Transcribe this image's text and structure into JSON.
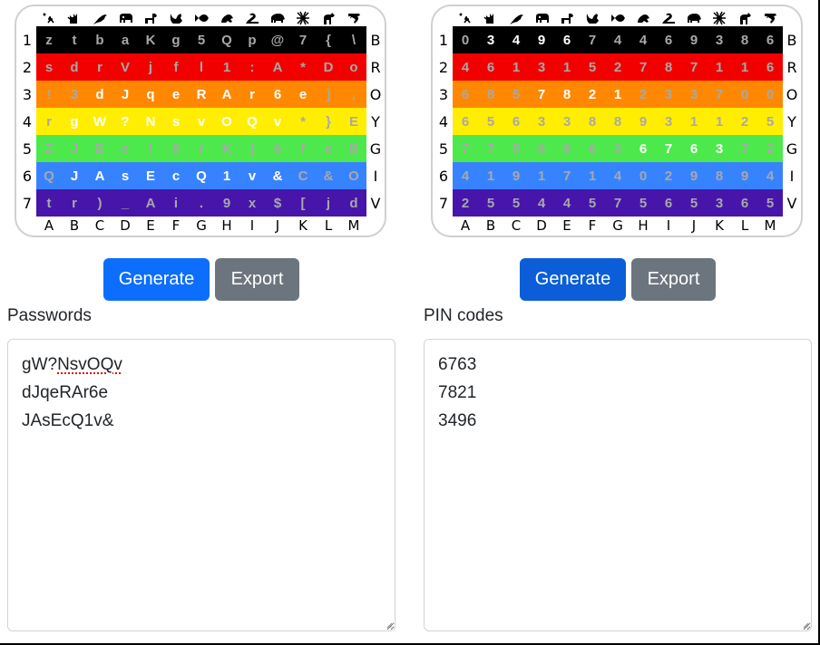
{
  "colors": {
    "rows": [
      "#000000",
      "#f20000",
      "#ff8800",
      "#ffee00",
      "#4de94c",
      "#3783ff",
      "#4815aa"
    ],
    "primary_button": "#0d6efd",
    "primary_button_active": "#0b5ed7",
    "secondary_button": "#6c757d",
    "dim_text": "#a8a8a8",
    "highlight_text": "#ffffff"
  },
  "grid_axes": {
    "icons": [
      "ant-icon",
      "cat-icon",
      "bird-icon",
      "elephant-icon",
      "dog-icon",
      "squirrel-icon",
      "fish-icon",
      "frog-icon",
      "snake-icon",
      "hippo-icon",
      "spider-icon",
      "horse-icon",
      "shrimp-icon"
    ],
    "row_numbers": [
      "1",
      "2",
      "3",
      "4",
      "5",
      "6",
      "7"
    ],
    "row_colors": [
      "B",
      "R",
      "O",
      "Y",
      "G",
      "I",
      "V"
    ],
    "col_letters": [
      "A",
      "B",
      "C",
      "D",
      "E",
      "F",
      "G",
      "H",
      "I",
      "J",
      "K",
      "L",
      "M"
    ]
  },
  "passwords": {
    "grid": [
      [
        "z",
        "t",
        "b",
        "a",
        "K",
        "g",
        "5",
        "Q",
        "p",
        "@",
        "7",
        "{",
        "\\"
      ],
      [
        "s",
        "d",
        "r",
        "V",
        "j",
        "f",
        "l",
        "1",
        ":",
        "A",
        "*",
        "D",
        "o"
      ],
      [
        "!",
        "3",
        "d",
        "J",
        "q",
        "e",
        "R",
        "A",
        "r",
        "6",
        "e",
        "]",
        ","
      ],
      [
        "r",
        "g",
        "W",
        "?",
        "N",
        "s",
        "v",
        "O",
        "Q",
        "v",
        "*",
        "}",
        "E"
      ],
      [
        "Z",
        "J",
        "E",
        "e",
        "!",
        "8",
        "r",
        "K",
        "{",
        "6",
        "f",
        "e",
        "B"
      ],
      [
        "Q",
        "J",
        "A",
        "s",
        "E",
        "c",
        "Q",
        "1",
        "v",
        "&",
        "C",
        "&",
        "O"
      ],
      [
        "t",
        "r",
        ")",
        "_",
        "A",
        "i",
        ".",
        "9",
        "x",
        "$",
        "[",
        "j",
        "d"
      ]
    ],
    "highlights": [
      [
        0,
        0,
        0,
        0,
        0,
        0,
        0,
        0,
        0,
        0,
        0,
        0,
        0
      ],
      [
        0,
        0,
        0,
        0,
        0,
        0,
        0,
        0,
        0,
        0,
        0,
        0,
        0
      ],
      [
        0,
        0,
        1,
        1,
        1,
        1,
        1,
        1,
        1,
        1,
        1,
        0,
        0
      ],
      [
        0,
        1,
        1,
        1,
        1,
        1,
        1,
        1,
        1,
        1,
        0,
        0,
        0
      ],
      [
        0,
        0,
        0,
        0,
        0,
        0,
        0,
        0,
        0,
        0,
        0,
        0,
        0
      ],
      [
        0,
        1,
        1,
        1,
        1,
        1,
        1,
        1,
        1,
        1,
        0,
        0,
        0
      ],
      [
        0,
        0,
        0,
        0,
        0,
        0,
        0,
        0,
        0,
        0,
        0,
        0,
        0
      ]
    ],
    "generate_label": "Generate",
    "export_label": "Export",
    "field_label": "Passwords",
    "values": [
      "gW?NsvOQv",
      "dJqeRAr6e",
      "JAsEcQ1v&"
    ],
    "first_value_prefix": "gW?",
    "first_value_misspelled": "NsvOQv"
  },
  "pins": {
    "grid": [
      [
        "0",
        "3",
        "4",
        "9",
        "6",
        "7",
        "4",
        "4",
        "6",
        "9",
        "3",
        "8",
        "6"
      ],
      [
        "4",
        "6",
        "1",
        "3",
        "1",
        "5",
        "2",
        "7",
        "8",
        "7",
        "1",
        "1",
        "6"
      ],
      [
        "6",
        "8",
        "5",
        "7",
        "8",
        "2",
        "1",
        "2",
        "3",
        "3",
        "7",
        "0",
        "0"
      ],
      [
        "6",
        "5",
        "6",
        "3",
        "3",
        "8",
        "8",
        "9",
        "3",
        "1",
        "1",
        "2",
        "5"
      ],
      [
        "7",
        "7",
        "5",
        "6",
        "8",
        "6",
        "3",
        "6",
        "7",
        "6",
        "3",
        "7",
        "2"
      ],
      [
        "4",
        "1",
        "9",
        "1",
        "7",
        "1",
        "4",
        "0",
        "2",
        "9",
        "8",
        "9",
        "4"
      ],
      [
        "2",
        "5",
        "5",
        "4",
        "4",
        "5",
        "7",
        "5",
        "6",
        "5",
        "3",
        "6",
        "5"
      ]
    ],
    "highlights": [
      [
        0,
        1,
        1,
        1,
        1,
        0,
        0,
        0,
        0,
        0,
        0,
        0,
        0
      ],
      [
        0,
        0,
        0,
        0,
        0,
        0,
        0,
        0,
        0,
        0,
        0,
        0,
        0
      ],
      [
        0,
        0,
        0,
        1,
        1,
        1,
        1,
        0,
        0,
        0,
        0,
        0,
        0
      ],
      [
        0,
        0,
        0,
        0,
        0,
        0,
        0,
        0,
        0,
        0,
        0,
        0,
        0
      ],
      [
        0,
        0,
        0,
        0,
        0,
        0,
        0,
        1,
        1,
        1,
        1,
        0,
        0
      ],
      [
        0,
        0,
        0,
        0,
        0,
        0,
        0,
        0,
        0,
        0,
        0,
        0,
        0
      ],
      [
        0,
        0,
        0,
        0,
        0,
        0,
        0,
        0,
        0,
        0,
        0,
        0,
        0
      ]
    ],
    "generate_label": "Generate",
    "export_label": "Export",
    "field_label": "PIN codes",
    "values": [
      "6763",
      "7821",
      "3496"
    ]
  }
}
